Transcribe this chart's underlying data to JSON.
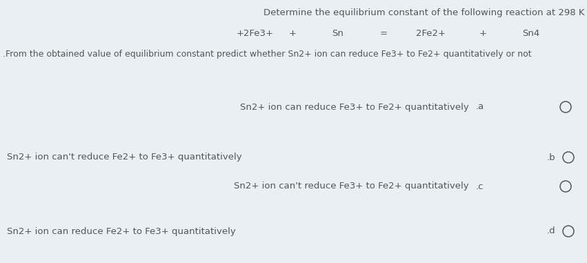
{
  "background_color": "#e8f0f5",
  "title_line1": "Determine the equilibrium constant of the following reaction at 298 K",
  "reaction_parts": [
    "+2Fe3+",
    "+",
    "Sn",
    "=",
    "2Fe2+",
    "+",
    "Sn4"
  ],
  "subtitle": ".From the obtained value of equilibrium constant predict whether Sn2+ ion can reduce Fe3+ to Fe2+ quantitatively or not",
  "options": [
    {
      "label": ".a",
      "text": "Sn2+ ion can reduce Fe3+ to Fe2+ quantitatively",
      "side": "right"
    },
    {
      "label": ".b",
      "text": "Sn2+ ion can't reduce Fe2+ to Fe3+ quantitatively",
      "side": "left"
    },
    {
      "label": ".c",
      "text": "Sn2+ ion can't reduce Fe3+ to Fe2+ quantitatively",
      "side": "right"
    },
    {
      "label": ".d",
      "text": "Sn2+ ion can reduce Fe2+ to Fe3+ quantitatively",
      "side": "left"
    }
  ],
  "text_color": "#555555",
  "font_size_title": 9.5,
  "font_size_reaction": 9.5,
  "font_size_subtitle": 9.0,
  "font_size_options": 9.5,
  "fig_width": 8.51,
  "fig_height": 3.81,
  "dpi": 100
}
